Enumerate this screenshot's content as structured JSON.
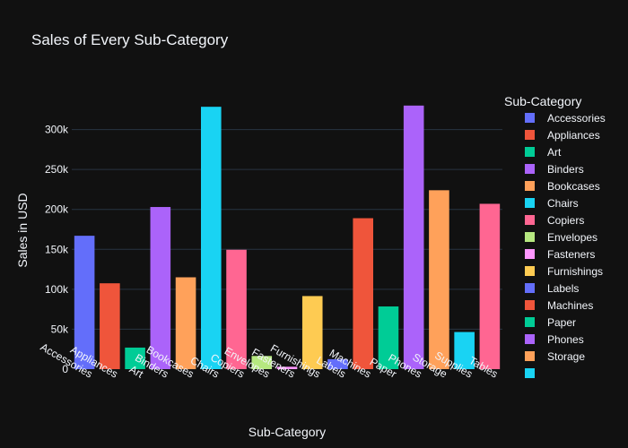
{
  "chart_data": {
    "type": "bar",
    "title": "Sales of Every Sub-Category",
    "xlabel": "Sub-Category",
    "ylabel": "Sales in USD",
    "ylim": [
      0,
      350000
    ],
    "yticks": [
      0,
      50000,
      100000,
      150000,
      200000,
      250000,
      300000
    ],
    "ytick_labels": [
      "0",
      "50k",
      "100k",
      "150k",
      "200k",
      "250k",
      "300k"
    ],
    "grid": true,
    "legend_title": "Sub-Category",
    "legend_placement": "right",
    "categories": [
      "Accessories",
      "Appliances",
      "Art",
      "Binders",
      "Bookcases",
      "Chairs",
      "Copiers",
      "Envelopes",
      "Fasteners",
      "Furnishings",
      "Labels",
      "Machines",
      "Paper",
      "Phones",
      "Storage",
      "Supplies",
      "Tables"
    ],
    "values": [
      167000,
      107500,
      27000,
      203000,
      115000,
      328500,
      149500,
      16500,
      3000,
      91500,
      12500,
      189000,
      78500,
      330000,
      224000,
      46500,
      207000
    ],
    "colors": [
      "#636efa",
      "#EF553B",
      "#00cc96",
      "#ab63fa",
      "#FFA15A",
      "#19d3f3",
      "#FF6692",
      "#B6E880",
      "#FF97FF",
      "#FECB52",
      "#636efa",
      "#EF553B",
      "#00cc96",
      "#ab63fa",
      "#FFA15A",
      "#19d3f3",
      "#FF6692"
    ],
    "legend_visible_count": 16
  }
}
